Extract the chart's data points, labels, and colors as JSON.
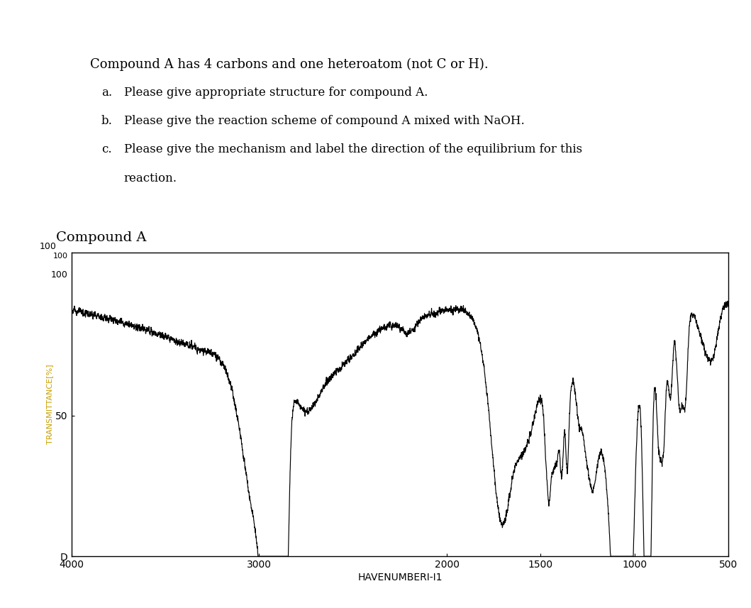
{
  "title_line": "Compound A has 4 carbons and one heteroatom (not C or H).",
  "sub_a": "Please give appropriate structure for compound A.",
  "sub_b": "Please give the reaction scheme of compound A mixed with NaOH.",
  "sub_c1": "Please give the mechanism and label the direction of the equilibrium for this",
  "sub_c2": "reaction.",
  "compound_label": "Compound A",
  "ylabel": "TRANSMITTANCE[%]",
  "xlabel": "HAVENUMBERI-I1",
  "ytick_labels": [
    "D",
    "50",
    "100"
  ],
  "ytick_positions": [
    0,
    50,
    100
  ],
  "xtick_positions": [
    4000,
    3000,
    2000,
    1500,
    1000,
    500
  ],
  "xmin": 4000,
  "xmax": 500,
  "ymin": 0,
  "ymax": 108,
  "background_color": "#ffffff",
  "line_color": "#000000",
  "ylabel_color": "#c8a000"
}
